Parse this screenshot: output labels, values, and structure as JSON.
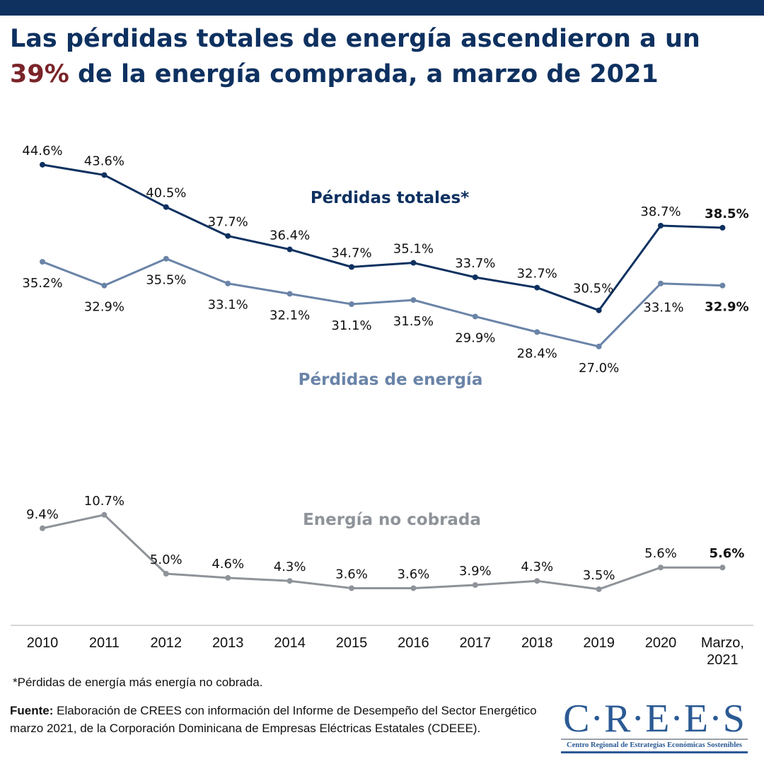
{
  "header": {
    "title_part1": "Las pérdidas totales de energía ascendieron a un",
    "title_highlight": "39%",
    "title_part2": " de la energía comprada, a marzo de 2021",
    "highlight_color": "#7a2429",
    "title_color": "#0e3160"
  },
  "chart_data": {
    "type": "line",
    "title": "Las pérdidas totales de energía ascendieron a un 39% de la energía comprada, a marzo de 2021",
    "xlabel": "",
    "ylabel": "",
    "ylim": [
      0,
      46
    ],
    "grid": false,
    "categories": [
      "2010",
      "2011",
      "2012",
      "2013",
      "2014",
      "2015",
      "2016",
      "2017",
      "2018",
      "2019",
      "2020",
      "Marzo, 2021"
    ],
    "category_lines": [
      [
        "2010"
      ],
      [
        "2011"
      ],
      [
        "2012"
      ],
      [
        "2013"
      ],
      [
        "2014"
      ],
      [
        "2015"
      ],
      [
        "2016"
      ],
      [
        "2017"
      ],
      [
        "2018"
      ],
      [
        "2019"
      ],
      [
        "2020"
      ],
      [
        "Marzo,",
        "2021"
      ]
    ],
    "series": [
      {
        "name": "Pérdidas totales*",
        "color": "#0e3160",
        "label_position": "above",
        "values": [
          44.6,
          43.6,
          40.5,
          37.7,
          36.4,
          34.7,
          35.1,
          33.7,
          32.7,
          30.5,
          38.7,
          38.5
        ],
        "labels": [
          "44.6%",
          "43.6%",
          "40.5%",
          "37.7%",
          "36.4%",
          "34.7%",
          "35.1%",
          "33.7%",
          "32.7%",
          "30.5%",
          "38.7%",
          "38.5%"
        ]
      },
      {
        "name": "Pérdidas de energía",
        "color": "#6a84a8",
        "label_position": "below",
        "values": [
          35.2,
          32.9,
          35.5,
          33.1,
          32.1,
          31.1,
          31.5,
          29.9,
          28.4,
          27.0,
          33.1,
          32.9
        ],
        "labels": [
          "35.2%",
          "32.9%",
          "35.5%",
          "33.1%",
          "32.1%",
          "31.1%",
          "31.5%",
          "29.9%",
          "28.4%",
          "27.0%",
          "33.1%",
          "32.9%"
        ]
      },
      {
        "name": "Energía no cobrada",
        "color": "#8e9399",
        "label_position": "above",
        "values": [
          9.4,
          10.7,
          5.0,
          4.6,
          4.3,
          3.6,
          3.6,
          3.9,
          4.3,
          3.5,
          5.6,
          5.6
        ],
        "labels": [
          "9.4%",
          "10.7%",
          "5.0%",
          "4.6%",
          "4.3%",
          "3.6%",
          "3.6%",
          "3.9%",
          "4.3%",
          "3.5%",
          "5.6%",
          "5.6%"
        ]
      }
    ],
    "last_label_bold": true
  },
  "footer": {
    "footnote": "*Pérdidas de energía más energía no cobrada.",
    "source_label": "Fuente:",
    "source_text": " Elaboración de CREES con información del Informe de Desempeño del Sector Energético marzo 2021, de la Corporación Dominicana de Empresas Eléctricas Estatales (CDEEE).",
    "logo_main": "C·R·E·E·S",
    "logo_sub": "Centro Regional de Estrategias Económicas Sostenibles"
  }
}
